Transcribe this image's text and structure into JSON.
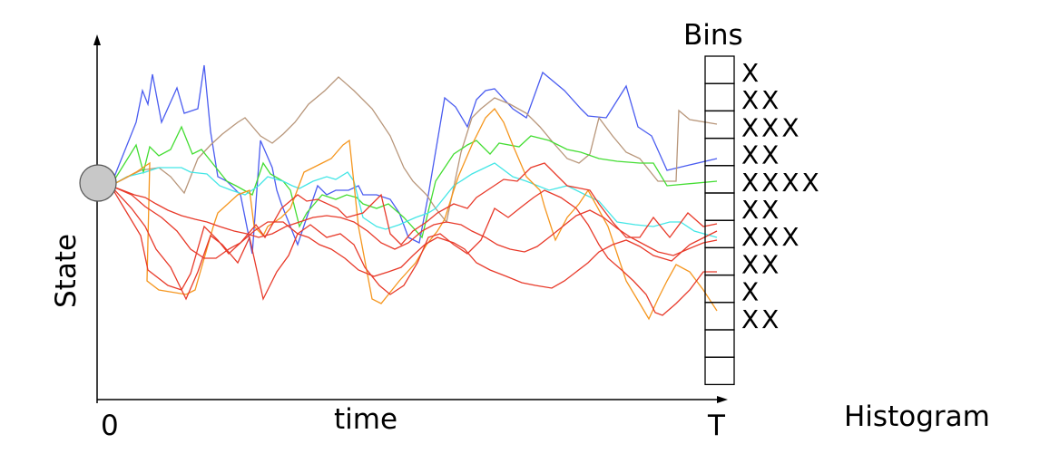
{
  "labels": {
    "y_axis": "State",
    "x_axis": "time",
    "origin": "0",
    "end": "T",
    "bins_title": "Bins",
    "histogram": "Histogram"
  },
  "bin_marks": [
    "X",
    "XX",
    "XXX",
    "XX",
    "XXXX",
    "XX",
    "XXX",
    "XX",
    "X",
    "XX"
  ],
  "colors": {
    "start_circle": "#c8c8c8",
    "axis": "#000000",
    "paths": [
      "#4a5cf0",
      "#b8967a",
      "#44dd33",
      "#44e6e6",
      "#f5961e",
      "#e83a2a",
      "#e83a2a",
      "#e83a2a",
      "#e83a2a"
    ]
  }
}
